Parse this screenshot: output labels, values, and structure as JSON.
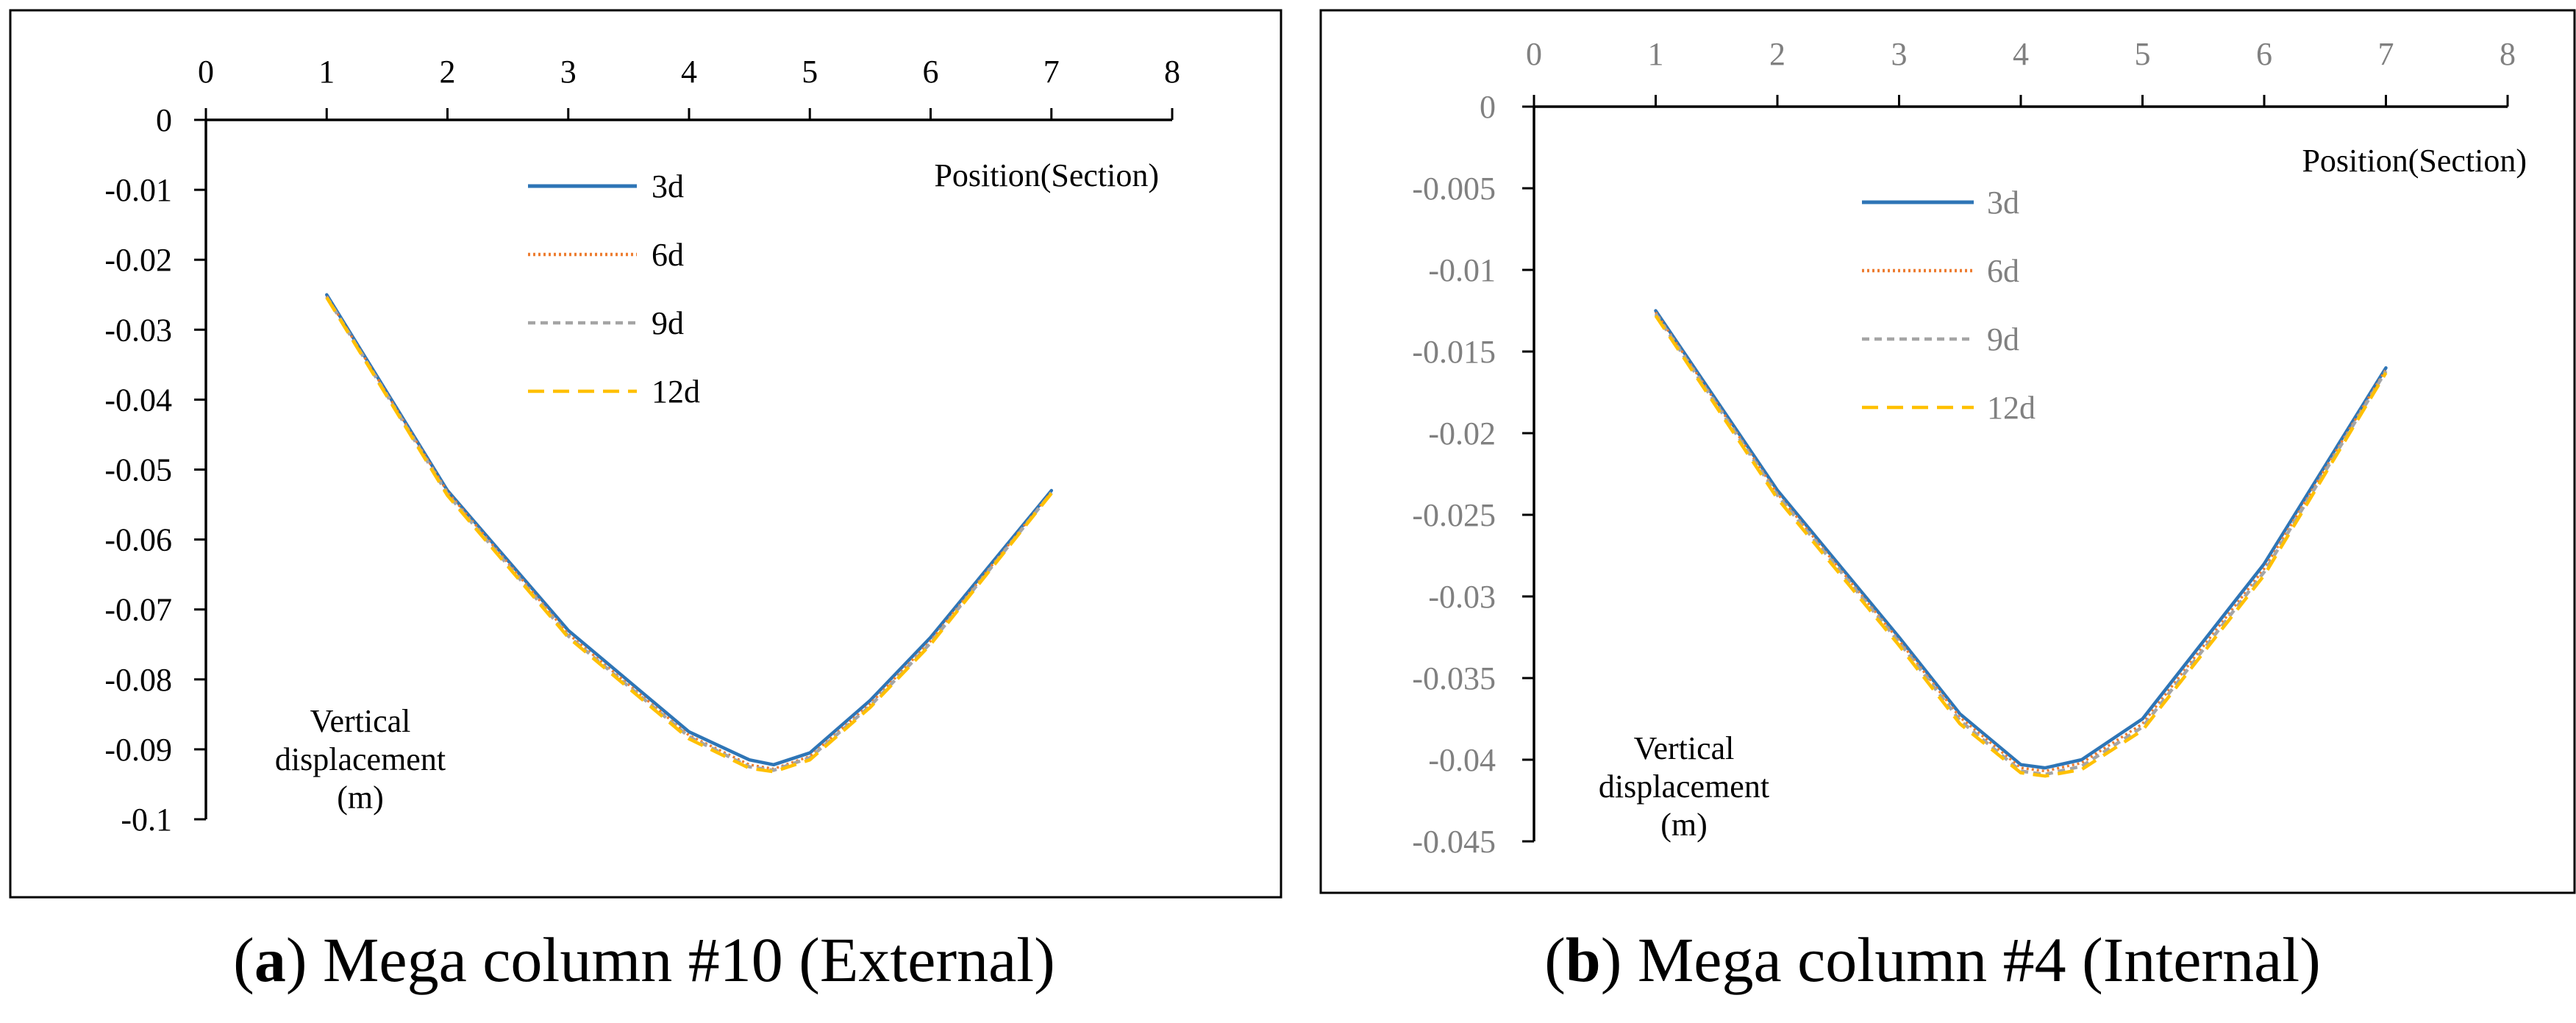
{
  "chart_data": [
    {
      "type": "line",
      "panel_label": "a",
      "caption": "Mega column #10 (External)",
      "xlabel": "Position(Section)",
      "ylabel": [
        "Vertical",
        "displacement",
        "(m)"
      ],
      "xlim": [
        0,
        8
      ],
      "ylim": [
        -0.1,
        0
      ],
      "xticks": [
        "0",
        "1",
        "2",
        "3",
        "4",
        "5",
        "6",
        "7",
        "8"
      ],
      "yticks": [
        "0",
        "-0.01",
        "-0.02",
        "-0.03",
        "-0.04",
        "-0.05",
        "-0.06",
        "-0.07",
        "-0.08",
        "-0.09",
        "-0.1"
      ],
      "tick_color": "#000000",
      "legend_text_color": "#000000",
      "legend_position": "top-center",
      "x": [
        1,
        2,
        3,
        4,
        4.5,
        4.7,
        5,
        5.5,
        6,
        7
      ],
      "series": [
        {
          "name": "3d",
          "color": "#2E75B6",
          "dash": "solid",
          "values": [
            -0.025,
            -0.053,
            -0.073,
            -0.0875,
            -0.0915,
            -0.0922,
            -0.0905,
            -0.083,
            -0.074,
            -0.053
          ]
        },
        {
          "name": "6d",
          "color": "#ED7D31",
          "dash": "dotted",
          "values": [
            -0.0252,
            -0.0532,
            -0.0735,
            -0.088,
            -0.0922,
            -0.0928,
            -0.091,
            -0.0835,
            -0.0745,
            -0.0532
          ]
        },
        {
          "name": "9d",
          "color": "#A5A5A5",
          "dash": "dashed",
          "values": [
            -0.0253,
            -0.0535,
            -0.0738,
            -0.0882,
            -0.0925,
            -0.093,
            -0.0912,
            -0.0838,
            -0.0748,
            -0.0533
          ]
        },
        {
          "name": "12d",
          "color": "#FFC000",
          "dash": "longdash",
          "values": [
            -0.0254,
            -0.0537,
            -0.074,
            -0.0885,
            -0.0927,
            -0.0932,
            -0.0915,
            -0.084,
            -0.075,
            -0.0534
          ]
        }
      ]
    },
    {
      "type": "line",
      "panel_label": "b",
      "caption": "Mega column #4 (Internal)",
      "xlabel": "Position(Section)",
      "ylabel": [
        "Vertical",
        "displacement",
        "(m)"
      ],
      "xlim": [
        0,
        8
      ],
      "ylim": [
        -0.045,
        0
      ],
      "xticks": [
        "0",
        "1",
        "2",
        "3",
        "4",
        "5",
        "6",
        "7",
        "8"
      ],
      "yticks": [
        "0",
        "-0.005",
        "-0.01",
        "-0.015",
        "-0.02",
        "-0.025",
        "-0.03",
        "-0.035",
        "-0.04",
        "-0.045"
      ],
      "tick_color": "#808080",
      "legend_text_color": "#808080",
      "legend_position": "top-center",
      "x": [
        1,
        2,
        3,
        3.5,
        4,
        4.2,
        4.5,
        5,
        6,
        7
      ],
      "series": [
        {
          "name": "3d",
          "color": "#2E75B6",
          "dash": "solid",
          "values": [
            -0.0125,
            -0.0235,
            -0.0325,
            -0.0372,
            -0.0403,
            -0.0405,
            -0.04,
            -0.0375,
            -0.028,
            -0.016
          ]
        },
        {
          "name": "6d",
          "color": "#ED7D31",
          "dash": "dotted",
          "values": [
            -0.0126,
            -0.0237,
            -0.0327,
            -0.0374,
            -0.0405,
            -0.0407,
            -0.0402,
            -0.0378,
            -0.0283,
            -0.0161
          ]
        },
        {
          "name": "9d",
          "color": "#A5A5A5",
          "dash": "dashed",
          "values": [
            -0.0127,
            -0.0238,
            -0.0328,
            -0.0376,
            -0.0407,
            -0.0409,
            -0.0404,
            -0.038,
            -0.0285,
            -0.0162
          ]
        },
        {
          "name": "12d",
          "color": "#FFC000",
          "dash": "longdash",
          "values": [
            -0.0128,
            -0.024,
            -0.033,
            -0.0378,
            -0.0408,
            -0.041,
            -0.0406,
            -0.0382,
            -0.0287,
            -0.0163
          ]
        }
      ]
    }
  ]
}
